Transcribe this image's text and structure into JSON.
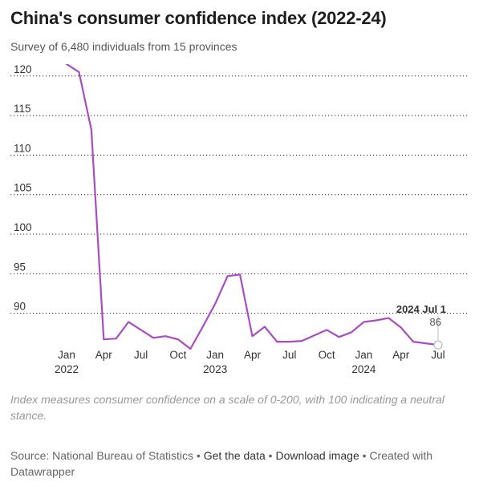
{
  "title": "China's consumer confidence index (2022-24)",
  "subtitle": "Survey of 6,480 individuals from 15 provinces",
  "note": "Index measures consumer confidence on a scale of 0-200, with 100 indicating a neutral stance.",
  "footer": {
    "source": "Source: National Bureau of Statistics",
    "sep": " • ",
    "get_data": "Get the data",
    "download": "Download image",
    "created": "Created with",
    "tool": "Datawrapper"
  },
  "chart_data": {
    "type": "line",
    "title": "China's consumer confidence index (2022-24)",
    "xlabel": "",
    "ylabel": "",
    "ylim": [
      85.5,
      121.5
    ],
    "yticks": [
      90,
      95,
      100,
      105,
      110,
      115,
      120
    ],
    "grid": "horizontal dotted",
    "line_color": "#a94cc4",
    "x_ticks": [
      {
        "month": 0,
        "label": "Jan",
        "year": "2022"
      },
      {
        "month": 3,
        "label": "Apr",
        "year": ""
      },
      {
        "month": 6,
        "label": "Jul",
        "year": ""
      },
      {
        "month": 9,
        "label": "Oct",
        "year": ""
      },
      {
        "month": 12,
        "label": "Jan",
        "year": "2023"
      },
      {
        "month": 15,
        "label": "Apr",
        "year": ""
      },
      {
        "month": 18,
        "label": "Jul",
        "year": ""
      },
      {
        "month": 21,
        "label": "Oct",
        "year": ""
      },
      {
        "month": 24,
        "label": "Jan",
        "year": "2024"
      },
      {
        "month": 27,
        "label": "Apr",
        "year": ""
      },
      {
        "month": 30,
        "label": "Jul",
        "year": ""
      }
    ],
    "x": [
      "2022-01",
      "2022-02",
      "2022-03",
      "2022-04",
      "2022-05",
      "2022-06",
      "2022-07",
      "2022-08",
      "2022-09",
      "2022-10",
      "2022-11",
      "2022-12",
      "2023-01",
      "2023-02",
      "2023-03",
      "2023-04",
      "2023-05",
      "2023-06",
      "2023-07",
      "2023-08",
      "2023-09",
      "2023-10",
      "2023-11",
      "2023-12",
      "2024-01",
      "2024-02",
      "2024-03",
      "2024-04",
      "2024-05",
      "2024-06",
      "2024-07"
    ],
    "values": [
      121.5,
      120.5,
      113.2,
      86.7,
      86.8,
      88.9,
      87.9,
      86.9,
      87.1,
      86.7,
      85.5,
      88.3,
      91.2,
      94.7,
      94.9,
      87.1,
      88.3,
      86.4,
      86.4,
      86.5,
      87.2,
      87.9,
      87.0,
      87.6,
      88.9,
      89.1,
      89.4,
      88.2,
      86.4,
      86.2,
      86.0
    ],
    "annotation": {
      "label": "2024 Jul 1",
      "value": "86",
      "month": 30
    }
  }
}
